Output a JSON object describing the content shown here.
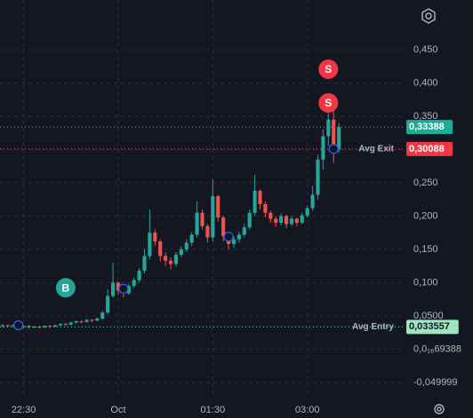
{
  "chart_data": {
    "type": "candlestick",
    "xlim": [
      -0.5,
      76.5
    ],
    "xticks": [
      {
        "value": 4,
        "label": "22:30"
      },
      {
        "value": 22,
        "label": "Oct"
      },
      {
        "value": 40,
        "label": "01:30"
      },
      {
        "value": 58,
        "label": "03:00"
      }
    ],
    "ylim": [
      -0.0727,
      0.5247
    ],
    "yticks": [
      {
        "value": 0.45,
        "label": "0,450"
      },
      {
        "value": 0.4,
        "label": "0,400"
      },
      {
        "value": 0.35,
        "label": "0,350"
      },
      {
        "value": 0.3,
        "label": "0,300"
      },
      {
        "value": 0.25,
        "label": "0,250"
      },
      {
        "value": 0.2,
        "label": "0,200"
      },
      {
        "value": 0.15,
        "label": "0,150"
      },
      {
        "value": 0.1,
        "label": "0,100"
      },
      {
        "value": 0.05,
        "label": "0,0500"
      },
      {
        "value": 6.9388e-17,
        "label": "0,0₁₆69388"
      },
      {
        "value": -0.049999,
        "label": "-0,049999"
      }
    ],
    "grid": true,
    "up_color": "#26a69a",
    "down_color": "#ef5350",
    "open": [
      0.035,
      0.036,
      0.035,
      0.036,
      0.034,
      0.035,
      0.033,
      0.034,
      0.033,
      0.035,
      0.034,
      0.036,
      0.038,
      0.037,
      0.04,
      0.042,
      0.041,
      0.044,
      0.043,
      0.046,
      0.055,
      0.08,
      0.1,
      0.088,
      0.084,
      0.095,
      0.104,
      0.118,
      0.14,
      0.175,
      0.162,
      0.14,
      0.133,
      0.128,
      0.142,
      0.15,
      0.16,
      0.172,
      0.205,
      0.185,
      0.168,
      0.23,
      0.198,
      0.17,
      0.158,
      0.165,
      0.172,
      0.183,
      0.205,
      0.238,
      0.218,
      0.205,
      0.196,
      0.19,
      0.2,
      0.188,
      0.196,
      0.19,
      0.201,
      0.212,
      0.232,
      0.285,
      0.32,
      0.345,
      0.3
    ],
    "high": [
      0.038,
      0.037,
      0.037,
      0.037,
      0.036,
      0.036,
      0.035,
      0.035,
      0.036,
      0.036,
      0.037,
      0.039,
      0.039,
      0.041,
      0.043,
      0.043,
      0.045,
      0.045,
      0.048,
      0.058,
      0.09,
      0.13,
      0.102,
      0.092,
      0.098,
      0.108,
      0.122,
      0.15,
      0.21,
      0.18,
      0.165,
      0.145,
      0.138,
      0.146,
      0.155,
      0.165,
      0.176,
      0.222,
      0.21,
      0.188,
      0.255,
      0.232,
      0.2,
      0.172,
      0.17,
      0.176,
      0.188,
      0.21,
      0.262,
      0.24,
      0.222,
      0.208,
      0.2,
      0.204,
      0.202,
      0.2,
      0.198,
      0.205,
      0.216,
      0.245,
      0.292,
      0.33,
      0.362,
      0.36,
      0.34
    ],
    "low": [
      0.033,
      0.033,
      0.033,
      0.032,
      0.032,
      0.031,
      0.031,
      0.031,
      0.032,
      0.032,
      0.033,
      0.035,
      0.035,
      0.036,
      0.039,
      0.039,
      0.04,
      0.041,
      0.042,
      0.044,
      0.052,
      0.078,
      0.082,
      0.078,
      0.082,
      0.092,
      0.1,
      0.114,
      0.135,
      0.155,
      0.132,
      0.125,
      0.12,
      0.124,
      0.138,
      0.146,
      0.155,
      0.168,
      0.18,
      0.16,
      0.162,
      0.192,
      0.162,
      0.15,
      0.152,
      0.16,
      0.168,
      0.18,
      0.2,
      0.21,
      0.198,
      0.19,
      0.184,
      0.186,
      0.182,
      0.185,
      0.185,
      0.188,
      0.198,
      0.208,
      0.225,
      0.27,
      0.305,
      0.28,
      0.295
    ],
    "close": [
      0.036,
      0.035,
      0.036,
      0.034,
      0.035,
      0.033,
      0.034,
      0.033,
      0.035,
      0.034,
      0.036,
      0.038,
      0.037,
      0.04,
      0.042,
      0.041,
      0.044,
      0.043,
      0.046,
      0.055,
      0.08,
      0.1,
      0.088,
      0.084,
      0.095,
      0.104,
      0.118,
      0.14,
      0.175,
      0.162,
      0.14,
      0.133,
      0.128,
      0.142,
      0.15,
      0.16,
      0.172,
      0.205,
      0.185,
      0.168,
      0.23,
      0.198,
      0.17,
      0.158,
      0.165,
      0.172,
      0.183,
      0.205,
      0.238,
      0.218,
      0.205,
      0.196,
      0.19,
      0.2,
      0.188,
      0.196,
      0.19,
      0.201,
      0.212,
      0.232,
      0.285,
      0.32,
      0.345,
      0.3,
      0.33388
    ],
    "price_lines": [
      {
        "value": 0.33388,
        "label": "0,33388",
        "color": "#22ab94",
        "text_color": "#ffffff",
        "line_color": "#787b86"
      },
      {
        "name": "Avg Exit",
        "value": 0.30088,
        "label": "0,30088",
        "color": "#f23645",
        "text_color": "#ffffff",
        "line_color": "#f23645"
      },
      {
        "name": "Avg Entry",
        "value": 0.033557,
        "label": "0,033557",
        "color": "#9ee6c0",
        "text_color": "#131722",
        "line_color": "#4fd1a0"
      }
    ],
    "signals": [
      {
        "label": "B",
        "x": 12,
        "color": "#26a69a"
      },
      {
        "label": "S",
        "x": 62,
        "color": "#f23645"
      },
      {
        "label": "S",
        "x": 62,
        "color": "#f23645"
      }
    ],
    "executions": {
      "x": [
        3,
        23,
        43,
        63
      ],
      "values": [
        0.036,
        0.091,
        0.169,
        0.3009
      ],
      "color": "#2962ff"
    }
  }
}
